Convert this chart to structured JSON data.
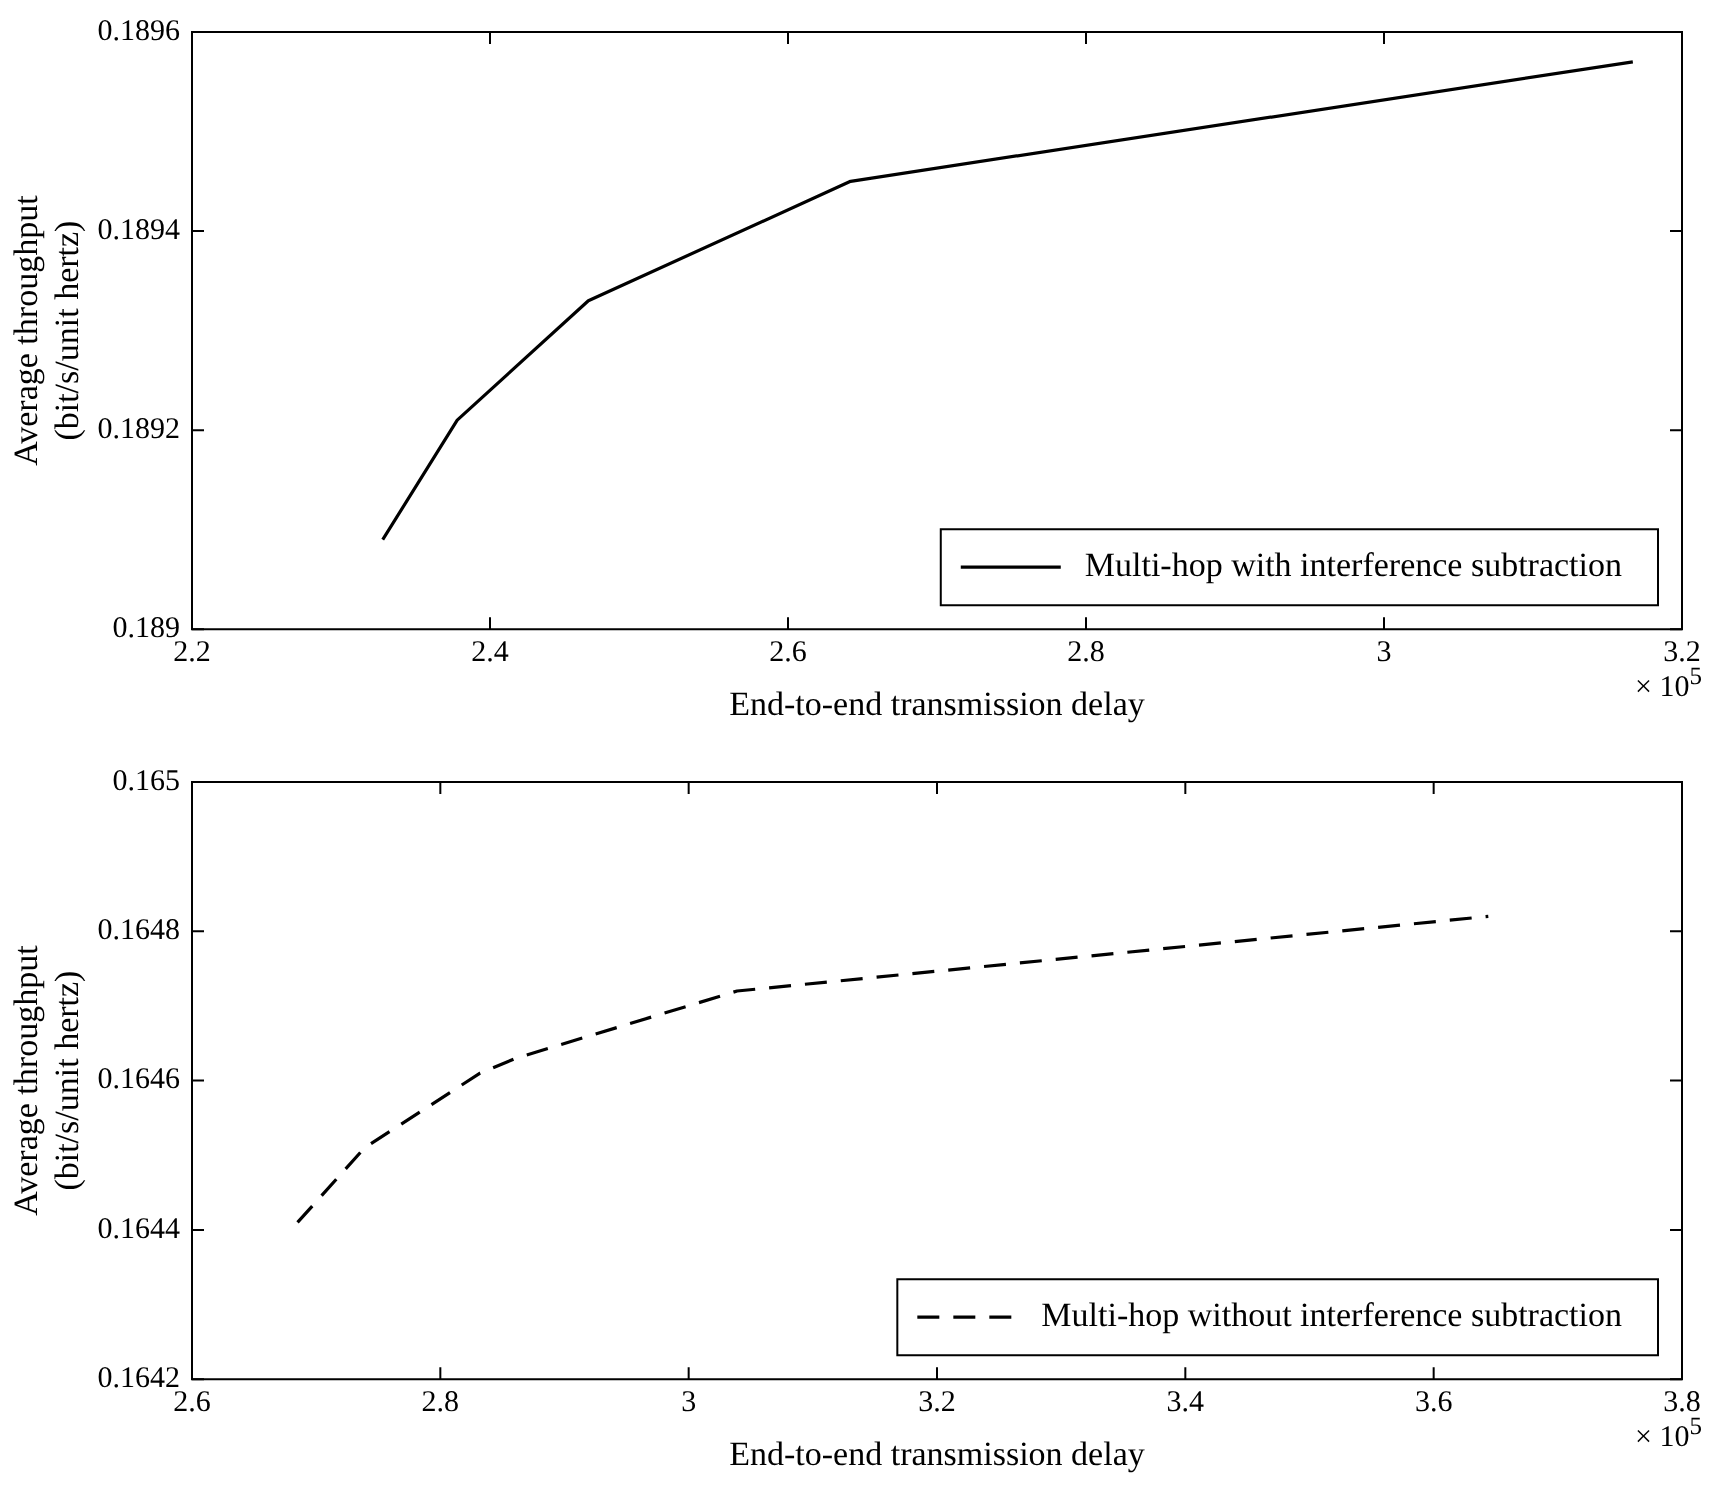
{
  "chart_data": [
    {
      "type": "line",
      "xlabel": "End-to-end transmission delay",
      "ylabel": "Average throughput\n(bit/s/unit hertz)",
      "annotations": [
        "× 10$^{5}$"
      ],
      "xlim": [
        2.2,
        3.2
      ],
      "xticks": [
        2.2,
        2.4,
        2.6,
        2.8,
        3,
        3.2
      ],
      "ylim": [
        0.189,
        0.1896
      ],
      "yticks": [
        0.189,
        0.1892,
        0.1894,
        0.1896
      ],
      "grid": false,
      "legend": "bottom right",
      "marker": "none",
      "series": [
        {
          "name": "Multi-hop with interference subtraction",
          "color": "#000000",
          "line_style": "solid",
          "x": [
            2.328,
            2.378,
            2.466,
            2.642,
            3.167
          ],
          "values": [
            0.18909,
            0.18921,
            0.18933,
            0.18945,
            0.18957
          ]
        }
      ]
    },
    {
      "type": "line",
      "xlabel": "End-to-end transmission delay",
      "ylabel": "Average throughput\n(bit/s/unit hertz)",
      "annotations": [
        "× 10$^{5}$"
      ],
      "xlim": [
        2.6,
        3.8
      ],
      "xticks": [
        2.6,
        2.8,
        3,
        3.2,
        3.4,
        3.6,
        3.8
      ],
      "ylim": [
        0.1642,
        0.165
      ],
      "yticks": [
        0.1642,
        0.1644,
        0.1646,
        0.1648,
        0.165
      ],
      "grid": false,
      "legend": "bottom right",
      "marker": "none",
      "series": [
        {
          "name": "Multi-hop without interference subtraction",
          "color": "#000000",
          "line_style": "dashed",
          "x": [
            2.685,
            2.739,
            2.832,
            2.861,
            3.039,
            3.644
          ],
          "values": [
            0.16441,
            0.16451,
            0.16461,
            0.16463,
            0.16472,
            0.16482
          ]
        }
      ]
    }
  ]
}
